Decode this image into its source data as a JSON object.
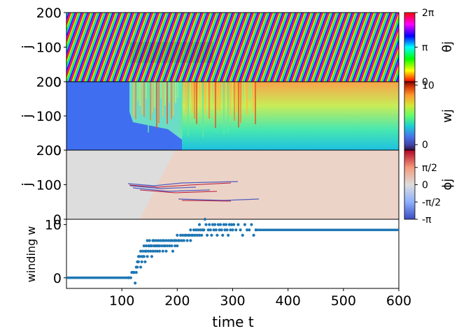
{
  "chart_data": [
    {
      "type": "heatmap",
      "id": "theta",
      "ylabel": "j",
      "yticks": [
        0,
        100,
        200
      ],
      "ylim": [
        0,
        200
      ],
      "xlim": [
        0,
        600
      ],
      "colorbar": {
        "label": "θj",
        "colormap": "hsv",
        "ticks": [
          "0",
          "π",
          "2π"
        ],
        "tick_values": [
          0,
          0.5,
          1
        ]
      }
    },
    {
      "type": "heatmap",
      "id": "w",
      "ylabel": "j",
      "yticks": [
        0,
        100,
        200
      ],
      "ylim": [
        0,
        200
      ],
      "xlim": [
        0,
        600
      ],
      "colorbar": {
        "label": "wj",
        "colormap": "turbo",
        "ticks": [
          "0",
          "10"
        ],
        "tick_values": [
          0.08,
          0.95
        ]
      }
    },
    {
      "type": "heatmap",
      "id": "phi",
      "ylabel": "j",
      "yticks": [
        0,
        100,
        200
      ],
      "ylim": [
        0,
        200
      ],
      "xlim": [
        0,
        600
      ],
      "colorbar": {
        "label": "ϕj",
        "colormap": "coolwarm",
        "ticks": [
          "-π",
          "-π/2",
          "0",
          "π/2"
        ],
        "tick_values": [
          0,
          0.25,
          0.5,
          0.75
        ]
      }
    },
    {
      "type": "scatter",
      "id": "winding",
      "xlabel": "time t",
      "ylabel": "winding w",
      "xlim": [
        0,
        600
      ],
      "ylim": [
        -2,
        11
      ],
      "xticks": [
        100,
        200,
        300,
        400,
        500,
        600
      ],
      "yticks": [
        0,
        10
      ],
      "color": "#1f77b4",
      "segments": [
        {
          "x_start": 0,
          "x_end": 112,
          "y": 0
        },
        {
          "x_start": 340,
          "x_end": 600,
          "y": 9
        }
      ],
      "points": [
        [
          112,
          0
        ],
        [
          116,
          0
        ],
        [
          118,
          1
        ],
        [
          120,
          1
        ],
        [
          122,
          1
        ],
        [
          124,
          -1
        ],
        [
          126,
          1
        ],
        [
          126,
          2
        ],
        [
          128,
          2
        ],
        [
          128,
          3
        ],
        [
          130,
          3
        ],
        [
          130,
          4
        ],
        [
          132,
          4
        ],
        [
          134,
          2
        ],
        [
          134,
          5
        ],
        [
          136,
          4
        ],
        [
          136,
          3
        ],
        [
          138,
          4
        ],
        [
          138,
          5
        ],
        [
          140,
          4
        ],
        [
          140,
          6
        ],
        [
          142,
          5
        ],
        [
          142,
          3
        ],
        [
          144,
          5
        ],
        [
          144,
          6
        ],
        [
          146,
          4
        ],
        [
          146,
          7
        ],
        [
          148,
          6
        ],
        [
          148,
          5
        ],
        [
          150,
          6
        ],
        [
          150,
          7
        ],
        [
          152,
          5
        ],
        [
          152,
          6
        ],
        [
          154,
          4
        ],
        [
          154,
          6
        ],
        [
          156,
          7
        ],
        [
          156,
          5
        ],
        [
          158,
          6
        ],
        [
          158,
          7
        ],
        [
          160,
          6
        ],
        [
          160,
          5
        ],
        [
          162,
          7
        ],
        [
          162,
          6
        ],
        [
          164,
          6
        ],
        [
          164,
          5
        ],
        [
          166,
          7
        ],
        [
          166,
          6
        ],
        [
          168,
          6
        ],
        [
          168,
          5
        ],
        [
          170,
          7
        ],
        [
          172,
          6
        ],
        [
          174,
          7
        ],
        [
          174,
          5
        ],
        [
          176,
          6
        ],
        [
          176,
          7
        ],
        [
          178,
          6
        ],
        [
          180,
          7
        ],
        [
          180,
          5
        ],
        [
          182,
          6
        ],
        [
          184,
          7
        ],
        [
          186,
          6
        ],
        [
          188,
          7
        ],
        [
          190,
          6
        ],
        [
          190,
          7
        ],
        [
          192,
          5
        ],
        [
          194,
          7
        ],
        [
          196,
          6
        ],
        [
          196,
          7
        ],
        [
          198,
          7
        ],
        [
          200,
          6
        ],
        [
          200,
          8
        ],
        [
          202,
          7
        ],
        [
          204,
          7
        ],
        [
          206,
          8
        ],
        [
          208,
          7
        ],
        [
          210,
          8
        ],
        [
          212,
          7
        ],
        [
          214,
          8
        ],
        [
          216,
          8
        ],
        [
          218,
          7
        ],
        [
          220,
          8
        ],
        [
          222,
          8
        ],
        [
          224,
          7
        ],
        [
          224,
          9
        ],
        [
          226,
          8
        ],
        [
          228,
          8
        ],
        [
          230,
          9
        ],
        [
          232,
          8
        ],
        [
          234,
          9
        ],
        [
          236,
          8
        ],
        [
          238,
          9
        ],
        [
          240,
          8
        ],
        [
          240,
          10
        ],
        [
          242,
          9
        ],
        [
          244,
          8
        ],
        [
          246,
          9
        ],
        [
          248,
          9
        ],
        [
          250,
          11
        ],
        [
          252,
          10
        ],
        [
          254,
          8
        ],
        [
          256,
          9
        ],
        [
          258,
          10
        ],
        [
          260,
          9
        ],
        [
          262,
          8
        ],
        [
          264,
          10
        ],
        [
          266,
          9
        ],
        [
          268,
          10
        ],
        [
          270,
          9
        ],
        [
          272,
          8
        ],
        [
          274,
          10
        ],
        [
          276,
          9
        ],
        [
          278,
          10
        ],
        [
          280,
          9
        ],
        [
          282,
          8
        ],
        [
          284,
          10
        ],
        [
          286,
          9
        ],
        [
          288,
          10
        ],
        [
          290,
          9
        ],
        [
          292,
          8
        ],
        [
          294,
          10
        ],
        [
          296,
          9
        ],
        [
          298,
          10
        ],
        [
          300,
          9
        ],
        [
          302,
          10
        ],
        [
          306,
          9
        ],
        [
          310,
          10
        ],
        [
          314,
          9
        ],
        [
          318,
          8
        ],
        [
          322,
          10
        ],
        [
          326,
          9
        ],
        [
          330,
          9
        ],
        [
          334,
          10
        ],
        [
          338,
          8
        ],
        [
          342,
          9
        ]
      ]
    }
  ]
}
